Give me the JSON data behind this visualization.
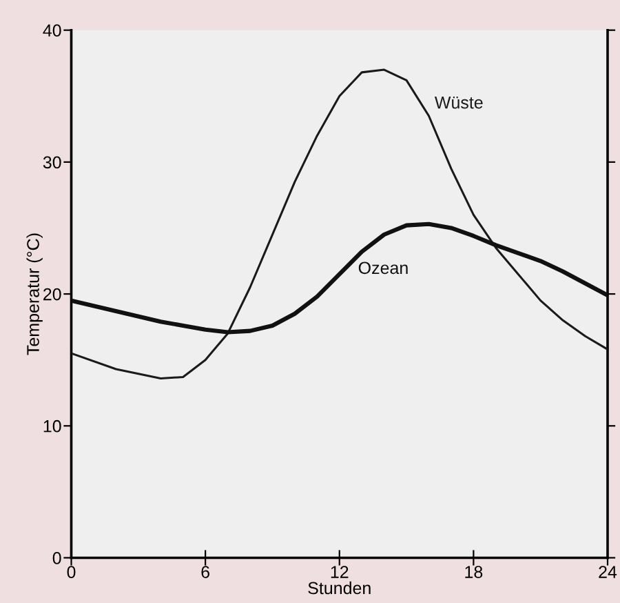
{
  "chart_data": {
    "type": "line",
    "xlabel": "Stunden",
    "ylabel": "Temperatur (°C)",
    "x": [
      0,
      2,
      4,
      5,
      6,
      7,
      8,
      9,
      10,
      11,
      12,
      13,
      14,
      15,
      16,
      17,
      18,
      19,
      20,
      21,
      22,
      23,
      24
    ],
    "series": [
      {
        "name": "Wüste",
        "color": "#1a1a1a",
        "values": [
          15.5,
          14.3,
          13.6,
          13.7,
          15,
          17,
          20.5,
          24.5,
          28.5,
          32,
          35,
          36.8,
          37,
          36.2,
          33.5,
          29.5,
          26,
          23.5,
          21.5,
          19.5,
          18,
          16.8,
          15.8
        ]
      },
      {
        "name": "Ozean",
        "color": "#111111",
        "values": [
          19.5,
          18.7,
          17.9,
          17.6,
          17.3,
          17.1,
          17.2,
          17.6,
          18.5,
          19.8,
          21.5,
          23.2,
          24.5,
          25.2,
          25.3,
          25,
          24.4,
          23.7,
          23.1,
          22.5,
          21.7,
          20.8,
          19.9
        ]
      }
    ],
    "xlim": [
      0,
      24
    ],
    "ylim": [
      0,
      40
    ],
    "xticks": [
      0,
      6,
      12,
      18,
      24
    ],
    "yticks": [
      0,
      10,
      20,
      30,
      40
    ],
    "grid": false,
    "legend": false,
    "marker": "none",
    "line_style": "solid"
  }
}
